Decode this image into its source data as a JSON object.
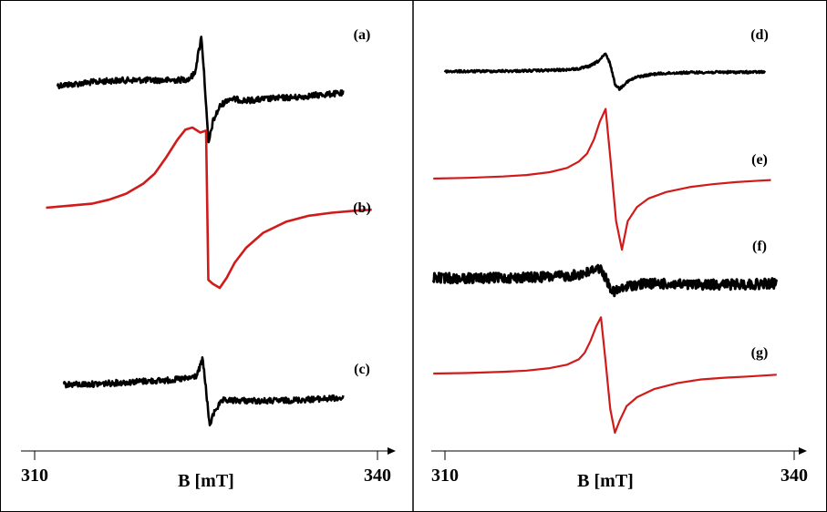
{
  "chart_data": [
    {
      "type": "line",
      "panel": "left",
      "xlabel": "B [mT]",
      "xlim": [
        310,
        340
      ],
      "ticks": [
        310,
        340
      ],
      "grid": false,
      "series": [
        {
          "name": "(a)",
          "color": "#000000",
          "noisy": true,
          "noise_level": "moderate",
          "x": [
            312.0,
            313.5,
            315.0,
            316.5,
            318.0,
            319.5,
            321.0,
            322.5,
            323.5,
            324.0,
            324.6,
            324.9,
            325.2,
            325.6,
            326.2,
            327.0,
            328.5,
            330.0,
            331.5,
            333.0,
            334.5,
            336.0,
            337.0
          ],
          "y": [
            0.1,
            0.12,
            0.15,
            0.17,
            0.18,
            0.18,
            0.18,
            0.18,
            0.2,
            0.28,
            0.85,
            0.1,
            -0.8,
            -0.45,
            -0.22,
            -0.1,
            -0.13,
            -0.11,
            -0.09,
            -0.08,
            -0.05,
            -0.03,
            -0.02
          ]
        },
        {
          "name": "(b)",
          "color": "#d11a1a",
          "noisy": false,
          "x": [
            311.0,
            313.0,
            315.0,
            316.5,
            318.0,
            319.5,
            320.5,
            321.5,
            322.5,
            323.2,
            323.8,
            324.5,
            325.0,
            325.1,
            325.2,
            325.6,
            326.2,
            326.8,
            327.5,
            328.5,
            330.0,
            332.0,
            334.0,
            336.0,
            338.0,
            339.5
          ],
          "y": [
            0.0,
            0.02,
            0.04,
            0.08,
            0.14,
            0.24,
            0.34,
            0.5,
            0.68,
            0.78,
            0.8,
            0.75,
            0.77,
            0.0,
            -0.72,
            -0.76,
            -0.8,
            -0.7,
            -0.55,
            -0.4,
            -0.25,
            -0.14,
            -0.08,
            -0.05,
            -0.03,
            -0.02
          ]
        },
        {
          "name": "(c)",
          "color": "#000000",
          "noisy": true,
          "noise_level": "moderate",
          "x": [
            312.5,
            314.0,
            315.5,
            317.0,
            318.5,
            320.0,
            321.5,
            322.5,
            323.5,
            324.2,
            324.7,
            325.0,
            325.3,
            325.8,
            326.5,
            328.0,
            330.0,
            332.0,
            334.0,
            336.0,
            337.0
          ],
          "y": [
            0.2,
            0.2,
            0.21,
            0.23,
            0.25,
            0.27,
            0.28,
            0.3,
            0.32,
            0.38,
            0.7,
            0.1,
            -0.62,
            -0.3,
            -0.12,
            -0.12,
            -0.13,
            -0.12,
            -0.1,
            -0.08,
            -0.07
          ]
        }
      ]
    },
    {
      "type": "line",
      "panel": "right",
      "xlabel": "B [mT]",
      "xlim": [
        310,
        340
      ],
      "ticks": [
        310,
        340
      ],
      "grid": false,
      "series": [
        {
          "name": "(d)",
          "color": "#000000",
          "noisy": true,
          "noise_level": "low",
          "x": [
            310.0,
            312.0,
            314.0,
            316.0,
            318.0,
            320.0,
            321.5,
            322.5,
            323.2,
            323.8,
            324.2,
            324.6,
            325.0,
            325.6,
            326.5,
            328.0,
            330.0,
            332.0,
            334.0,
            336.0,
            337.5
          ],
          "y": [
            0.03,
            0.03,
            0.04,
            0.05,
            0.07,
            0.1,
            0.16,
            0.3,
            0.55,
            0.9,
            0.4,
            -0.6,
            -0.85,
            -0.5,
            -0.25,
            -0.1,
            -0.04,
            -0.02,
            -0.01,
            -0.01,
            0.0
          ]
        },
        {
          "name": "(e)",
          "color": "#d11a1a",
          "noisy": false,
          "x": [
            309.0,
            312.0,
            315.0,
            317.0,
            319.0,
            320.5,
            321.5,
            322.2,
            322.8,
            323.3,
            323.8,
            324.2,
            324.7,
            325.2,
            325.7,
            326.5,
            327.5,
            329.0,
            331.0,
            333.0,
            335.0,
            337.0,
            338.0
          ],
          "y": [
            0.0,
            0.01,
            0.03,
            0.05,
            0.09,
            0.15,
            0.24,
            0.35,
            0.55,
            0.8,
            0.98,
            0.3,
            -0.6,
            -1.0,
            -0.6,
            -0.4,
            -0.28,
            -0.19,
            -0.12,
            -0.08,
            -0.05,
            -0.03,
            -0.02
          ]
        },
        {
          "name": "(f)",
          "color": "#000000",
          "noisy": true,
          "noise_level": "high",
          "x": [
            309.0,
            311.0,
            313.0,
            315.0,
            317.0,
            319.0,
            320.5,
            321.5,
            322.5,
            323.0,
            323.5,
            324.0,
            324.5,
            325.0,
            326.0,
            327.5,
            329.0,
            331.0,
            333.0,
            335.0,
            337.0,
            338.5
          ],
          "y": [
            0.05,
            0.04,
            0.04,
            0.05,
            0.06,
            0.08,
            0.1,
            0.14,
            0.22,
            0.35,
            0.25,
            -0.1,
            -0.35,
            -0.28,
            -0.15,
            -0.1,
            -0.12,
            -0.14,
            -0.13,
            -0.13,
            -0.12,
            -0.1
          ]
        },
        {
          "name": "(g)",
          "color": "#d11a1a",
          "noisy": false,
          "x": [
            309.0,
            312.0,
            315.0,
            317.0,
            319.0,
            320.5,
            321.5,
            322.0,
            322.5,
            323.0,
            323.4,
            323.8,
            324.2,
            324.6,
            325.0,
            325.6,
            326.5,
            328.0,
            330.0,
            332.0,
            334.0,
            336.0,
            338.5
          ],
          "y": [
            0.0,
            0.01,
            0.03,
            0.05,
            0.09,
            0.15,
            0.24,
            0.35,
            0.55,
            0.8,
            0.95,
            0.2,
            -0.6,
            -1.0,
            -0.8,
            -0.55,
            -0.4,
            -0.26,
            -0.16,
            -0.1,
            -0.07,
            -0.05,
            -0.02
          ]
        }
      ]
    }
  ]
}
